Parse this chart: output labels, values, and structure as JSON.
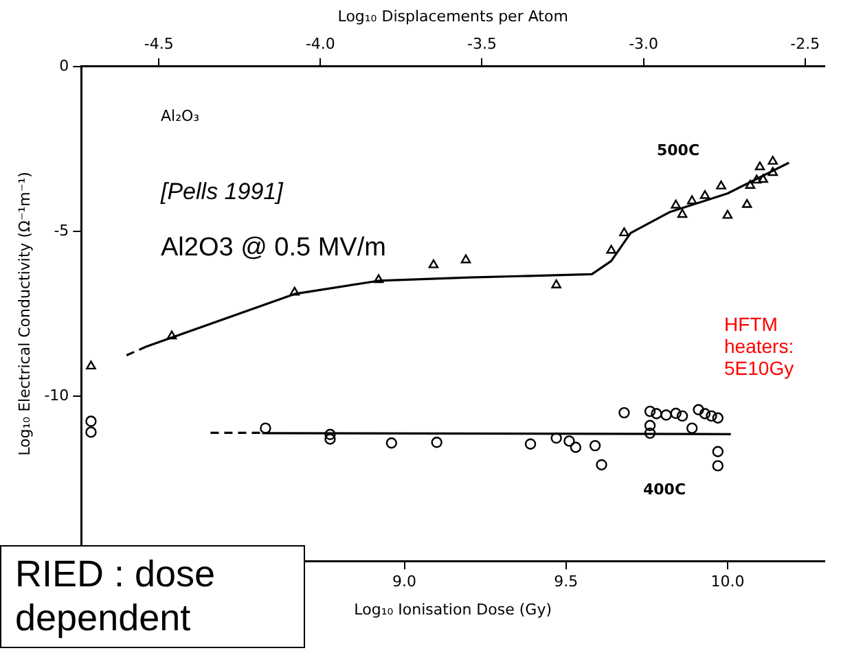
{
  "chart_data": {
    "type": "scatter",
    "xlabel": "Log₁₀ Ionisation Dose (Gy)",
    "ylabel": "Log₁₀ Electrical Conductivity (Ω⁻¹m⁻¹)",
    "x2label": "Log₁₀ Displacements per Atom",
    "xlim": [
      8,
      10.3
    ],
    "xticks": [
      {
        "value": 9,
        "label": "9.0"
      },
      9.5,
      {
        "value": 10,
        "label": "10.0"
      }
    ],
    "x2lim": [
      -4.74,
      -2.44
    ],
    "x2ticks": [
      -4.5,
      {
        "value": -4,
        "label": "-4.0"
      },
      -3.5,
      {
        "value": -3,
        "label": "-3.0"
      },
      -2.5
    ],
    "ylim": [
      -15,
      0
    ],
    "yticks": [
      0,
      -5,
      -10
    ],
    "grid": false,
    "legend": false,
    "series": [
      {
        "marker": "triangle",
        "color": "#000000",
        "x": [
          8.03,
          8.28,
          8.66,
          8.92,
          9.09,
          9.19,
          9.47,
          9.64,
          9.68,
          9.84,
          9.86,
          9.89,
          9.93,
          9.98,
          10.0,
          10.06,
          10.07,
          10.09,
          10.11,
          10.14,
          10.1,
          10.14
        ],
        "values": [
          -9.09,
          -8.18,
          -6.85,
          -6.47,
          -6.02,
          -5.87,
          -6.63,
          -5.58,
          -5.05,
          -4.21,
          -4.49,
          -4.08,
          -3.92,
          -3.63,
          -4.52,
          -4.19,
          -3.61,
          -3.45,
          -3.43,
          -3.22,
          -3.05,
          -2.88
        ]
      },
      {
        "type": "line",
        "marker": "none",
        "line_style": "dashed",
        "color": "#000000",
        "x": [
          8.14,
          8.2
        ],
        "values": [
          -8.76,
          -8.5
        ]
      },
      {
        "type": "line",
        "marker": "none",
        "line_style": "solid",
        "color": "#000000",
        "x": [
          8.2,
          8.66,
          8.92,
          9.2,
          9.58,
          9.64,
          9.7,
          9.82,
          10.0,
          10.19
        ],
        "values": [
          -8.5,
          -6.9,
          -6.5,
          -6.4,
          -6.3,
          -5.9,
          -5.05,
          -4.42,
          -3.85,
          -2.92
        ]
      },
      {
        "marker": "circle",
        "color": "#000000",
        "x": [
          8.03,
          8.03,
          8.57,
          8.77,
          8.77,
          8.96,
          9.1,
          9.39,
          9.47,
          9.51,
          9.53,
          9.59,
          9.61,
          9.97,
          9.97,
          9.68,
          9.76,
          9.76,
          9.76,
          9.78,
          9.81,
          9.84,
          9.86,
          9.89,
          9.91,
          9.93,
          9.95,
          9.97
        ],
        "values": [
          -10.76,
          -11.09,
          -10.97,
          -11.16,
          -11.3,
          -11.42,
          -11.4,
          -11.45,
          -11.27,
          -11.36,
          -11.55,
          -11.5,
          -12.08,
          -11.68,
          -12.11,
          -10.5,
          -10.46,
          -10.89,
          -11.12,
          -10.53,
          -10.57,
          -10.52,
          -10.6,
          -10.97,
          -10.41,
          -10.53,
          -10.6,
          -10.66
        ]
      },
      {
        "type": "line",
        "marker": "none",
        "line_style": "dashed",
        "color": "#000000",
        "x": [
          8.4,
          8.56
        ],
        "values": [
          -11.11,
          -11.11
        ]
      },
      {
        "type": "line",
        "marker": "none",
        "line_style": "solid",
        "color": "#000000",
        "x": [
          8.56,
          10.01
        ],
        "values": [
          -11.12,
          -11.15
        ]
      }
    ],
    "annotations": [
      "Al₂O₃",
      "[Pells 1991]",
      "Al2O3 @ 0.5 MV/m",
      "HFTM heaters: 5E10Gy",
      "RIED : dose dependent",
      "500C",
      "400C"
    ]
  }
}
